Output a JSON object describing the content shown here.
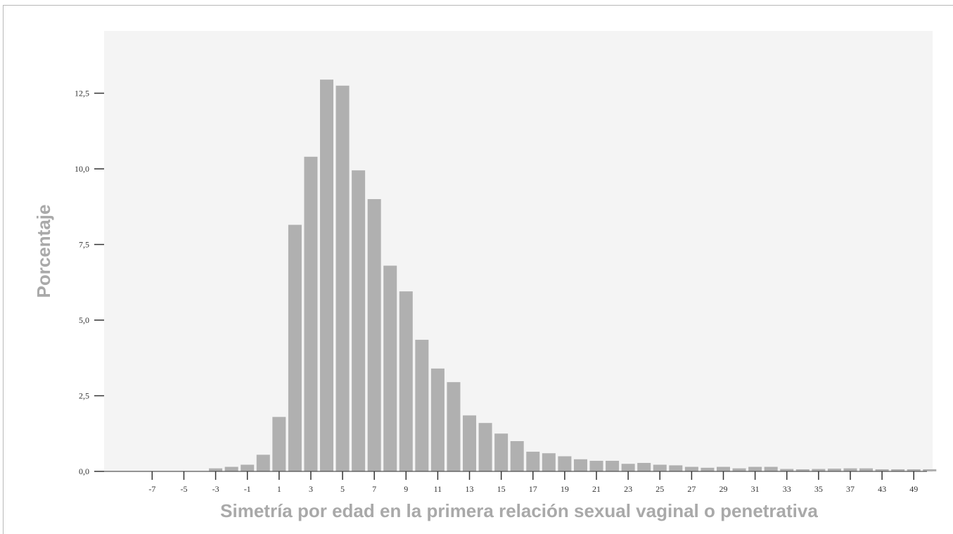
{
  "chart_data": {
    "type": "bar",
    "xlabel": "Simetría por edad en la primera relación sexual vaginal o penetrativa",
    "ylabel": "Porcentaje",
    "ylim": [
      0,
      14.5
    ],
    "y_ticks": [
      "0,0",
      "2,5",
      "5,0",
      "7,5",
      "10,0",
      "12,5"
    ],
    "y_tick_values": [
      0,
      2.5,
      5.0,
      7.5,
      10.0,
      12.5
    ],
    "x_tick_labels": [
      "-7",
      "-5",
      "-3",
      "-1",
      "1",
      "3",
      "5",
      "7",
      "9",
      "11",
      "13",
      "15",
      "17",
      "19",
      "21",
      "23",
      "25",
      "27",
      "29",
      "31",
      "33",
      "35",
      "37",
      "43",
      "49"
    ],
    "x_tick_bar_index": [
      1,
      3,
      5,
      7,
      9,
      11,
      13,
      15,
      17,
      19,
      21,
      23,
      25,
      27,
      29,
      31,
      33,
      35,
      37,
      39,
      41,
      43,
      45,
      47,
      49
    ],
    "bar_count": 51,
    "values": [
      0,
      0,
      0,
      0,
      0,
      0.1,
      0.15,
      0.22,
      0.55,
      1.8,
      8.15,
      10.4,
      12.95,
      12.75,
      9.95,
      9.0,
      6.8,
      5.95,
      4.35,
      3.4,
      2.95,
      1.85,
      1.6,
      1.25,
      1.0,
      0.65,
      0.6,
      0.5,
      0.4,
      0.35,
      0.35,
      0.25,
      0.28,
      0.22,
      0.2,
      0.15,
      0.12,
      0.15,
      0.1,
      0.15,
      0.15,
      0.08,
      0.07,
      0.08,
      0.09,
      0.1,
      0.1,
      0.07,
      0.07,
      0.07,
      0.07
    ],
    "grid": false,
    "colors": {
      "bar": "#b0b0b0",
      "plot_background": "#f4f4f4",
      "axis_title": "#a9a9a9",
      "tick": "#333333"
    }
  }
}
